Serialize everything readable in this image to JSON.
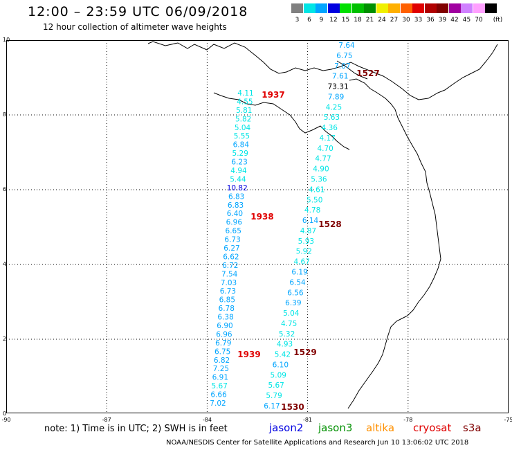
{
  "header": {
    "title": "12:00 – 23:59 UTC 06/09/2018",
    "subtitle": "12 hour collection of altimeter wave heights"
  },
  "legend": {
    "unit": "(ft)",
    "bins": [
      {
        "label": "3",
        "color": "#808080"
      },
      {
        "label": "6",
        "color": "#00e5e5"
      },
      {
        "label": "9",
        "color": "#00a5ff"
      },
      {
        "label": "12",
        "color": "#0000e0"
      },
      {
        "label": "15",
        "color": "#00e000"
      },
      {
        "label": "18",
        "color": "#00c000"
      },
      {
        "label": "21",
        "color": "#009000"
      },
      {
        "label": "24",
        "color": "#f0f000"
      },
      {
        "label": "27",
        "color": "#ffb000"
      },
      {
        "label": "30",
        "color": "#ff6000"
      },
      {
        "label": "33",
        "color": "#e00000"
      },
      {
        "label": "36",
        "color": "#b00000"
      },
      {
        "label": "39",
        "color": "#800000"
      },
      {
        "label": "42",
        "color": "#a000a0"
      },
      {
        "label": "45",
        "color": "#d080ff"
      },
      {
        "label": "70",
        "color": "#ffa0ff"
      },
      {
        "label": "",
        "color": "#000000"
      }
    ]
  },
  "axes": {
    "y_ticks": [
      "10",
      "8",
      "6",
      "4",
      "2",
      "0"
    ],
    "x_ticks": [
      "-90",
      "-87",
      "-84",
      "-81",
      "-78",
      "-75"
    ]
  },
  "tracks": [
    {
      "id": "track_1937_1939",
      "values": [
        "4.11",
        "4.55",
        "5.81",
        "5.82",
        "5.04",
        "5.55",
        "6.84",
        "5.29",
        "6.23",
        "4.94",
        "5.44",
        "10.82",
        "6.83",
        "6.83",
        "6.40",
        "6.96",
        "6.65",
        "6.73",
        "6.27",
        "6.62",
        "6.72",
        "7.54",
        "7.03",
        "6.73",
        "6.85",
        "6.78",
        "6.38",
        "6.90",
        "6.96",
        "6.79",
        "6.75",
        "6.82",
        "7.25",
        "6.91",
        "5.67",
        "6.66",
        "7.02"
      ]
    },
    {
      "id": "track_1527_1530",
      "values": [
        "7.64",
        "6.75",
        "7.07",
        "7.61",
        "73.31",
        "7.89",
        "4.25",
        "5.63",
        "4.36",
        "4.17",
        "4.70",
        "4.77",
        "4.90",
        "5.36",
        "4.61",
        "5.50",
        "4.78",
        "6.14",
        "4.87",
        "5.93",
        "5.92",
        "4.67",
        "6.19",
        "6.54",
        "6.56",
        "6.39",
        "5.04",
        "4.75",
        "5.32",
        "4.93",
        "5.42",
        "6.10",
        "5.09",
        "5.67",
        "5.79",
        "6.17"
      ]
    }
  ],
  "time_labels": [
    {
      "text": "1937",
      "color": "#e00000"
    },
    {
      "text": "1938",
      "color": "#e00000"
    },
    {
      "text": "1939",
      "color": "#e00000"
    },
    {
      "text": "1527",
      "color": "#800000"
    },
    {
      "text": "1528",
      "color": "#800000"
    },
    {
      "text": "1529",
      "color": "#800000"
    },
    {
      "text": "1530",
      "color": "#800000"
    }
  ],
  "footer": {
    "note": "note:  1) Time is in UTC;  2) SWH is in feet",
    "satellites": [
      {
        "name": "jason2",
        "color": "#0000e0"
      },
      {
        "name": "jason3",
        "color": "#009000"
      },
      {
        "name": "altika",
        "color": "#ff9000"
      },
      {
        "name": "cryosat",
        "color": "#e00000"
      },
      {
        "name": "s3a",
        "color": "#800000"
      }
    ],
    "credit": "NOAA/NESDIS Center for Satellite Applications and Research      Jun 10 13:06:02 UTC 2018"
  }
}
